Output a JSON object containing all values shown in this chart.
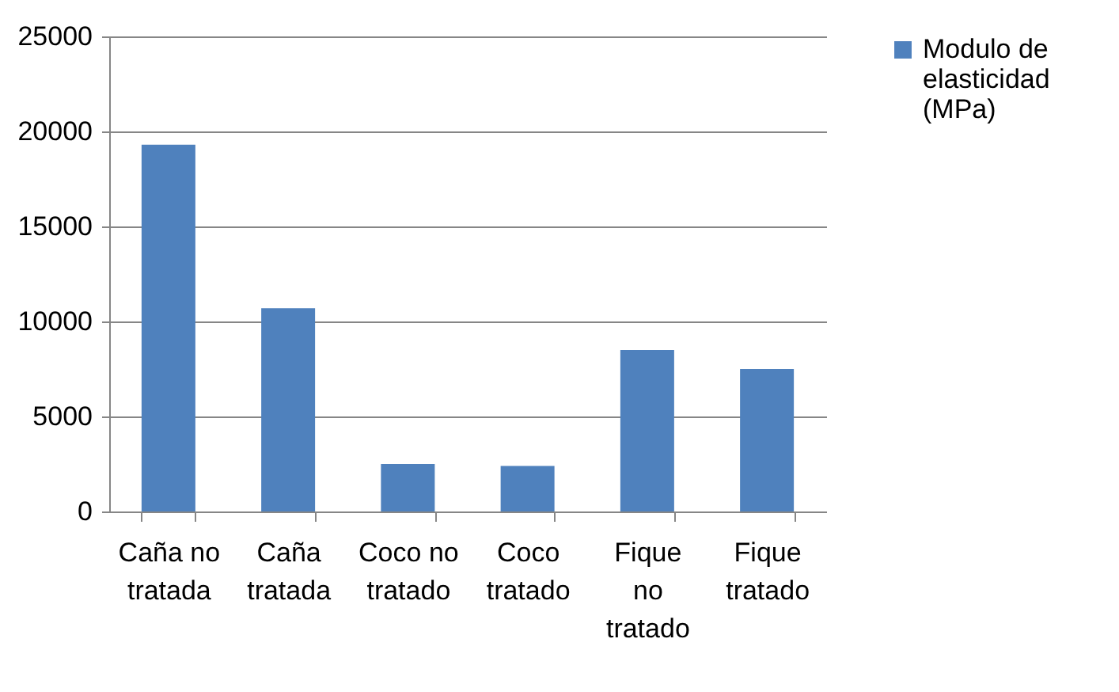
{
  "chart_data": {
    "type": "bar",
    "categories": [
      "Caña no tratada",
      "Caña tratada",
      "Coco no tratado",
      "Coco tratado",
      "Fique no tratado",
      "Fique tratado"
    ],
    "series": [
      {
        "name": "Modulo de elasticidad (MPa)",
        "color": "#4f81bd",
        "values": [
          19300,
          10700,
          2500,
          2400,
          8500,
          7500
        ]
      }
    ],
    "ylim": [
      0,
      25000
    ],
    "yticks": [
      0,
      5000,
      10000,
      15000,
      20000,
      25000
    ],
    "grid": "y",
    "legend": "right"
  }
}
